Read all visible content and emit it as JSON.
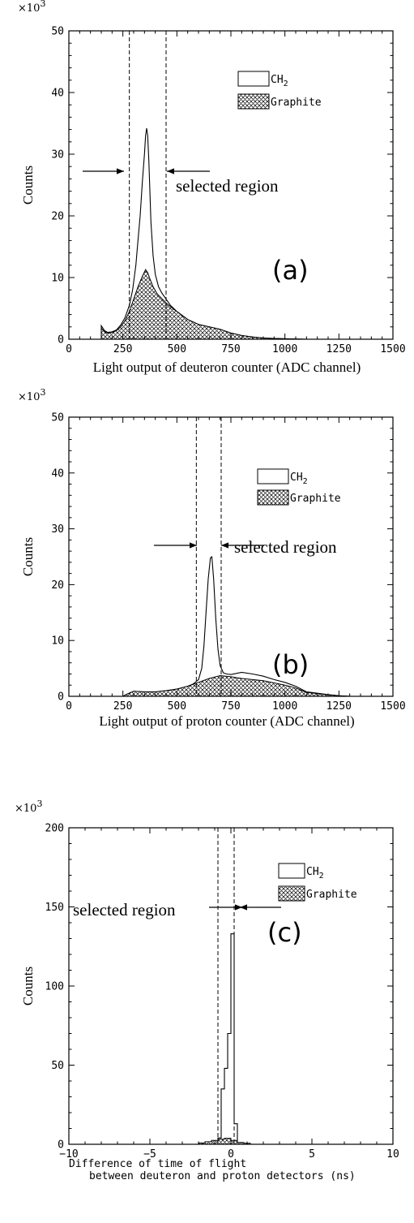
{
  "chart_data": [
    {
      "type": "area",
      "panel_label": "(a)",
      "multiplier": "×10",
      "multiplier_exp": "3",
      "xlabel": "Light output of deuteron counter (ADC channel)",
      "ylabel": "Counts",
      "xlim": [
        0,
        1500
      ],
      "ylim": [
        0,
        50
      ],
      "xticks": [
        "0",
        "250",
        "500",
        "750",
        "1000",
        "1250",
        "1500"
      ],
      "yticks": [
        "0",
        "10",
        "20",
        "30",
        "40",
        "50"
      ],
      "annotation": "selected region",
      "selection": [
        280,
        450
      ],
      "legend_placement": "top-right",
      "legend": [
        {
          "label": "CH",
          "sub": "2",
          "style": "open"
        },
        {
          "label": "Graphite",
          "style": "crosshatch"
        }
      ],
      "series": [
        {
          "name": "CH2",
          "style": "open",
          "x": [
            150,
            165,
            180,
            200,
            220,
            240,
            260,
            280,
            295,
            310,
            320,
            330,
            340,
            350,
            355,
            360,
            365,
            370,
            375,
            380,
            390,
            400,
            415,
            430,
            450,
            470,
            500,
            550,
            600,
            650,
            700,
            750,
            800,
            850,
            900,
            950,
            1000,
            1050,
            1100
          ],
          "y": [
            2.2,
            1.4,
            1.1,
            1.2,
            1.5,
            2.3,
            3.5,
            5.5,
            8,
            12,
            16,
            20,
            25.5,
            30,
            33,
            34.2,
            33,
            29,
            24,
            19,
            13.5,
            10.5,
            8.5,
            7.5,
            6.5,
            5.5,
            4.5,
            3.2,
            2.4,
            2.0,
            1.6,
            1.0,
            0.6,
            0.35,
            0.2,
            0.12,
            0.08,
            0.04,
            0
          ]
        },
        {
          "name": "Graphite",
          "style": "crosshatch",
          "x": [
            150,
            165,
            180,
            200,
            220,
            240,
            260,
            280,
            300,
            320,
            340,
            355,
            365,
            375,
            390,
            410,
            430,
            450,
            480,
            500,
            550,
            600,
            650,
            700,
            750,
            800,
            850,
            900,
            950,
            1000,
            1050,
            1100
          ],
          "y": [
            1.8,
            1.2,
            1.0,
            1.1,
            1.4,
            2.0,
            3.0,
            4.5,
            6.5,
            8.5,
            10.2,
            11.3,
            10.8,
            9.8,
            8.5,
            7.3,
            6.6,
            5.9,
            5.0,
            4.5,
            3.2,
            2.4,
            2.0,
            1.6,
            1.0,
            0.6,
            0.35,
            0.2,
            0.12,
            0.08,
            0.04,
            0
          ]
        }
      ]
    },
    {
      "type": "area",
      "panel_label": "(b)",
      "multiplier": "×10",
      "multiplier_exp": "3",
      "xlabel": "Light output of proton counter (ADC channel)",
      "ylabel": "Counts",
      "xlim": [
        0,
        1500
      ],
      "ylim": [
        0,
        50
      ],
      "xticks": [
        "0",
        "250",
        "500",
        "750",
        "1000",
        "1250",
        "1500"
      ],
      "yticks": [
        "0",
        "10",
        "20",
        "30",
        "40",
        "50"
      ],
      "annotation": "selected region",
      "selection": [
        590,
        705
      ],
      "legend_placement": "top-right",
      "legend": [
        {
          "label": "CH",
          "sub": "2",
          "style": "open"
        },
        {
          "label": "Graphite",
          "style": "crosshatch"
        }
      ],
      "series": [
        {
          "name": "CH2",
          "style": "open",
          "x": [
            250,
            270,
            300,
            350,
            400,
            450,
            500,
            550,
            575,
            600,
            615,
            625,
            635,
            645,
            655,
            662,
            670,
            680,
            690,
            700,
            715,
            730,
            750,
            800,
            850,
            900,
            950,
            1000,
            1050,
            1080,
            1100,
            1150,
            1200,
            1250,
            1300
          ],
          "y": [
            0,
            0.4,
            0.9,
            0.8,
            0.8,
            1.0,
            1.3,
            1.8,
            2.2,
            3.0,
            5,
            9,
            15,
            21,
            24.8,
            25,
            21,
            14,
            8.5,
            5.5,
            4.2,
            4.0,
            3.9,
            4.3,
            4.0,
            3.6,
            3.0,
            2.5,
            1.8,
            1.2,
            0.8,
            0.55,
            0.3,
            0.1,
            0
          ]
        },
        {
          "name": "Graphite",
          "style": "crosshatch",
          "x": [
            250,
            270,
            300,
            350,
            400,
            450,
            500,
            550,
            600,
            650,
            700,
            750,
            800,
            850,
            900,
            950,
            1000,
            1050,
            1080,
            1100,
            1150,
            1200,
            1250,
            1300
          ],
          "y": [
            0,
            0.4,
            0.9,
            0.8,
            0.8,
            1.0,
            1.3,
            1.8,
            2.5,
            3.2,
            3.7,
            3.5,
            3.2,
            3.0,
            2.8,
            2.4,
            2.0,
            1.5,
            1.0,
            0.7,
            0.5,
            0.28,
            0.1,
            0
          ]
        }
      ]
    },
    {
      "type": "area",
      "panel_label": "(c)",
      "multiplier": "×10",
      "multiplier_exp": "3",
      "xlabel": "Difference of time of flight",
      "xlabel_line2": "between deuteron and proton detectors (ns)",
      "ylabel": "Counts",
      "xlim": [
        -10,
        10
      ],
      "ylim": [
        0,
        200
      ],
      "xticks": [
        "−10",
        "−5",
        "0",
        "5",
        "10"
      ],
      "yticks": [
        "0",
        "50",
        "100",
        "150",
        "200"
      ],
      "annotation": "selected region",
      "selection": [
        -0.8,
        0.2
      ],
      "legend_placement": "top-right",
      "legend": [
        {
          "label": "CH",
          "sub": "2",
          "style": "open"
        },
        {
          "label": "Graphite",
          "style": "crosshatch"
        }
      ],
      "series": [
        {
          "name": "CH2",
          "style": "open",
          "x": [
            -2.0,
            -1.6,
            -1.2,
            -1.0,
            -0.8,
            -0.6,
            -0.4,
            -0.2,
            0,
            0.2,
            0.4,
            0.6,
            1.0
          ],
          "y": [
            0,
            0.5,
            1.0,
            1.5,
            4,
            35,
            48,
            70,
            133,
            13,
            1,
            0.5,
            0
          ],
          "step": true
        },
        {
          "name": "Graphite",
          "style": "crosshatch",
          "x": [
            -2.4,
            -2.0,
            -1.6,
            -1.2,
            -0.8,
            -0.4,
            0,
            0.4,
            0.8,
            1.2
          ],
          "y": [
            0,
            0.8,
            1.6,
            2.4,
            3.2,
            3.8,
            2.4,
            1.2,
            0.6,
            0
          ],
          "step": true
        }
      ]
    }
  ]
}
